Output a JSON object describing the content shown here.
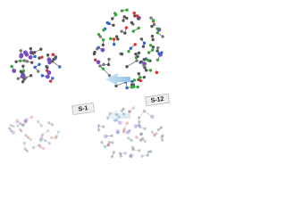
{
  "labels": {
    "left": "S-1",
    "right": "S-12"
  }
}
